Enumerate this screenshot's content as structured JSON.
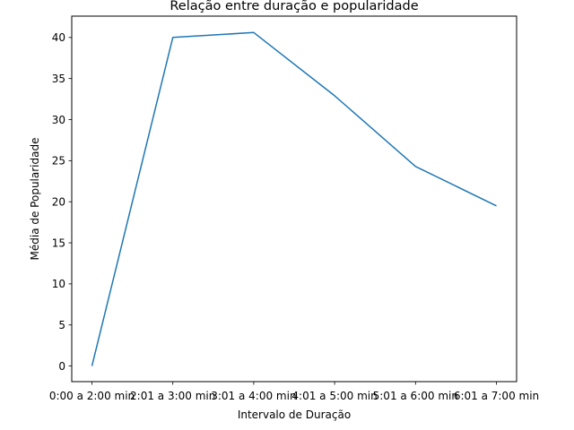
{
  "chart_data": {
    "type": "line",
    "title": "Relação entre duração e popularidade",
    "xlabel": "Intervalo de Duração",
    "ylabel": "Média de Popularidade",
    "categories": [
      "0:00 a 2:00 min",
      "2:01 a 3:00 min",
      "3:01 a 4:00 min",
      "4:01 a 5:00 min",
      "5:01 a 6:00 min",
      "6:01 a 7:00 min"
    ],
    "series": [
      {
        "values": [
          0,
          40.0,
          40.6,
          32.9,
          24.3,
          19.5
        ],
        "color": "#1f77b4"
      }
    ],
    "ylim": [
      -1.9,
      42.6
    ],
    "yticks": [
      0,
      5,
      10,
      15,
      20,
      25,
      30,
      35,
      40
    ],
    "grid": false,
    "legend": "none"
  }
}
